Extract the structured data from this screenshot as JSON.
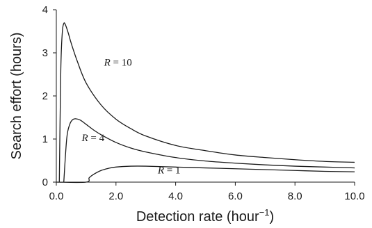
{
  "chart_data": {
    "type": "line",
    "xlabel_base": "Detection rate (hour",
    "xlabel_sup": "−1",
    "xlabel_close": ")",
    "ylabel": "Search effort (hours)",
    "xlim": [
      0,
      10
    ],
    "ylim": [
      0,
      4
    ],
    "x_ticks": [
      "0.0",
      "2.0",
      "4.0",
      "6.0",
      "8.0",
      "10.0"
    ],
    "y_ticks": [
      "0",
      "1",
      "2",
      "3",
      "4"
    ],
    "grid": false,
    "legend": "none",
    "series": [
      {
        "name": "R = 10",
        "label_var": "R",
        "label_rest": " = 10",
        "x": [
          0.1,
          0.15,
          0.2,
          0.25,
          0.3,
          0.4,
          0.5,
          0.7,
          1.0,
          1.5,
          2.0,
          2.5,
          3.0,
          4.0,
          5.0,
          6.0,
          7.0,
          8.0,
          9.0,
          10.0
        ],
        "y": [
          0.0,
          2.6,
          3.47,
          3.68,
          3.66,
          3.46,
          3.22,
          2.81,
          2.3,
          1.79,
          1.46,
          1.24,
          1.07,
          0.85,
          0.73,
          0.63,
          0.57,
          0.52,
          0.48,
          0.46
        ]
      },
      {
        "name": "R = 4",
        "label_var": "R",
        "label_rest": " = 4",
        "x": [
          0.25,
          0.35,
          0.45,
          0.55,
          0.65,
          0.8,
          1.0,
          1.25,
          1.5,
          2.0,
          2.5,
          3.0,
          4.0,
          5.0,
          6.0,
          7.0,
          8.0,
          9.0,
          10.0
        ],
        "y": [
          0.0,
          1.02,
          1.34,
          1.45,
          1.47,
          1.44,
          1.34,
          1.21,
          1.1,
          0.92,
          0.79,
          0.7,
          0.57,
          0.49,
          0.44,
          0.4,
          0.37,
          0.35,
          0.33
        ]
      },
      {
        "name": "R = 1",
        "label_var": "R",
        "label_rest": " = 1",
        "x": [
          0.0,
          1.0,
          1.1,
          1.25,
          1.5,
          1.75,
          2.0,
          2.5,
          3.0,
          4.0,
          5.0,
          6.0,
          7.0,
          8.0,
          9.0,
          10.0
        ],
        "y": [
          0.0,
          0.0,
          0.1,
          0.18,
          0.27,
          0.32,
          0.35,
          0.37,
          0.37,
          0.35,
          0.33,
          0.31,
          0.29,
          0.27,
          0.25,
          0.24
        ]
      }
    ]
  }
}
